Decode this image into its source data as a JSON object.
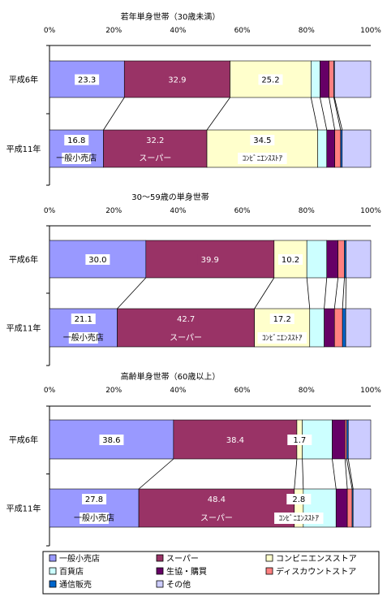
{
  "chart_data": {
    "type": "bar",
    "orientation": "horizontal",
    "stacked": "percent",
    "xlim": [
      0,
      100
    ],
    "tick_labels": [
      "0%",
      "20%",
      "40%",
      "60%",
      "80%",
      "100%"
    ],
    "categories": [
      "平成6年",
      "平成11年"
    ],
    "legend": {
      "placement": "bottom",
      "entries": [
        {
          "name": "一般小売店",
          "color": "#9999ff"
        },
        {
          "name": "スーパー",
          "color": "#993366"
        },
        {
          "name": "コンビニエンスストア",
          "color": "#ffffcc"
        },
        {
          "name": "百貨店",
          "color": "#ccffff"
        },
        {
          "name": "生協・購買",
          "color": "#660066"
        },
        {
          "name": "ディスカウントストア",
          "color": "#ff8080"
        },
        {
          "name": "通信販売",
          "color": "#0066cc"
        },
        {
          "name": "その他",
          "color": "#ccccff"
        }
      ]
    },
    "segment_labels": [
      "一般小売店",
      "スーパー",
      "ｺﾝﾋﾞﾆｴﾝｽｽﾄｱ"
    ],
    "panels": [
      {
        "title": "若年単身世帯（30歳未満）",
        "series": [
          {
            "name": "一般小売店",
            "values": [
              23.3,
              16.8
            ]
          },
          {
            "name": "スーパー",
            "values": [
              32.9,
              32.2
            ]
          },
          {
            "name": "コンビニエンスストア",
            "values": [
              25.2,
              34.5
            ]
          },
          {
            "name": "百貨店",
            "values": [
              2.8,
              2.8
            ]
          },
          {
            "name": "生協・購買",
            "values": [
              2.8,
              2.5
            ]
          },
          {
            "name": "ディスカウントストア",
            "values": [
              1.5,
              1.8
            ]
          },
          {
            "name": "通信販売",
            "values": [
              0.2,
              0.5
            ]
          },
          {
            "name": "その他",
            "values": [
              11.3,
              8.9
            ]
          }
        ]
      },
      {
        "title": "30～59歳の単身世帯",
        "series": [
          {
            "name": "一般小売店",
            "values": [
              30.0,
              21.1
            ]
          },
          {
            "name": "スーパー",
            "values": [
              39.9,
              42.7
            ]
          },
          {
            "name": "コンビニエンスストア",
            "values": [
              10.2,
              17.2
            ]
          },
          {
            "name": "百貨店",
            "values": [
              6.2,
              4.5
            ]
          },
          {
            "name": "生協・購買",
            "values": [
              3.5,
              3.2
            ]
          },
          {
            "name": "ディスカウントストア",
            "values": [
              2.0,
              2.5
            ]
          },
          {
            "name": "通信販売",
            "values": [
              0.5,
              1.0
            ]
          },
          {
            "name": "その他",
            "values": [
              7.7,
              7.8
            ]
          }
        ]
      },
      {
        "title": "高齢単身世帯（60歳以上）",
        "series": [
          {
            "name": "一般小売店",
            "values": [
              38.6,
              27.8
            ]
          },
          {
            "name": "スーパー",
            "values": [
              38.4,
              48.4
            ]
          },
          {
            "name": "コンビニエンスストア",
            "values": [
              1.7,
              2.8
            ]
          },
          {
            "name": "百貨店",
            "values": [
              9.3,
              10.2
            ]
          },
          {
            "name": "生協・購買",
            "values": [
              4.0,
              3.5
            ]
          },
          {
            "name": "ディスカウントストア",
            "values": [
              0.5,
              1.5
            ]
          },
          {
            "name": "通信販売",
            "values": [
              0.5,
              0.3
            ]
          },
          {
            "name": "その他",
            "values": [
              7.0,
              5.5
            ]
          }
        ]
      }
    ]
  }
}
